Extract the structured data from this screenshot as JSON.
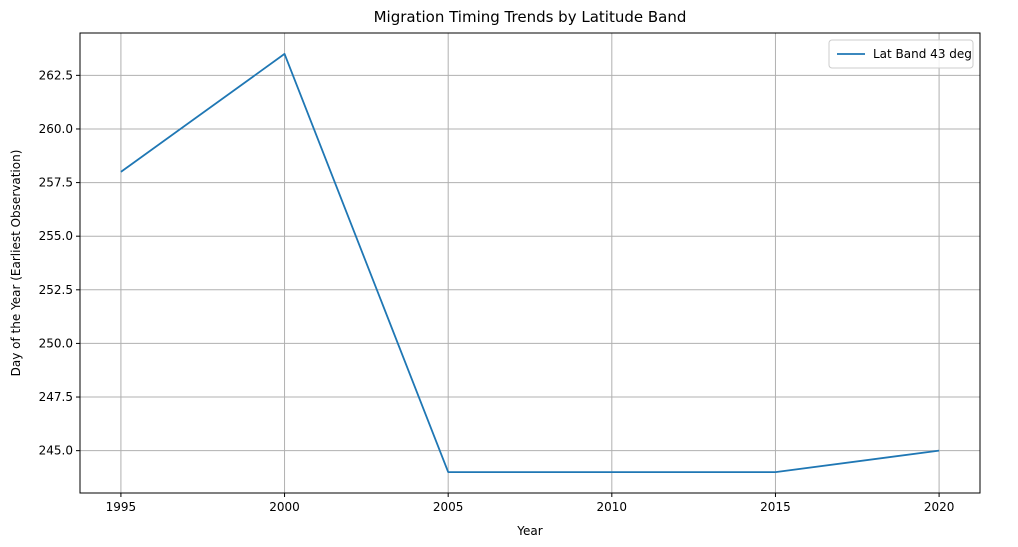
{
  "chart_data": {
    "type": "line",
    "title": "Migration Timing Trends by Latitude Band",
    "xlabel": "Year",
    "ylabel": "Day of the Year (Earliest Observation)",
    "x": [
      1995,
      2000,
      2005,
      2010,
      2015,
      2020
    ],
    "series": [
      {
        "name": "Lat Band 43 deg",
        "values": [
          258.0,
          263.5,
          244.0,
          244.0,
          244.0,
          245.0
        ],
        "color": "#1f77b4"
      }
    ],
    "xlim": [
      1993.75,
      2021.25
    ],
    "ylim": [
      243.025,
      264.475
    ],
    "x_ticks": [
      1995,
      2000,
      2005,
      2010,
      2015,
      2020
    ],
    "x_tick_labels": [
      "1995",
      "2000",
      "2005",
      "2010",
      "2015",
      "2020"
    ],
    "y_ticks": [
      245.0,
      247.5,
      250.0,
      252.5,
      255.0,
      257.5,
      260.0,
      262.5
    ],
    "y_tick_labels": [
      "245.0",
      "247.5",
      "250.0",
      "252.5",
      "255.0",
      "257.5",
      "260.0",
      "262.5"
    ],
    "grid": true,
    "legend_position": "top-right"
  }
}
